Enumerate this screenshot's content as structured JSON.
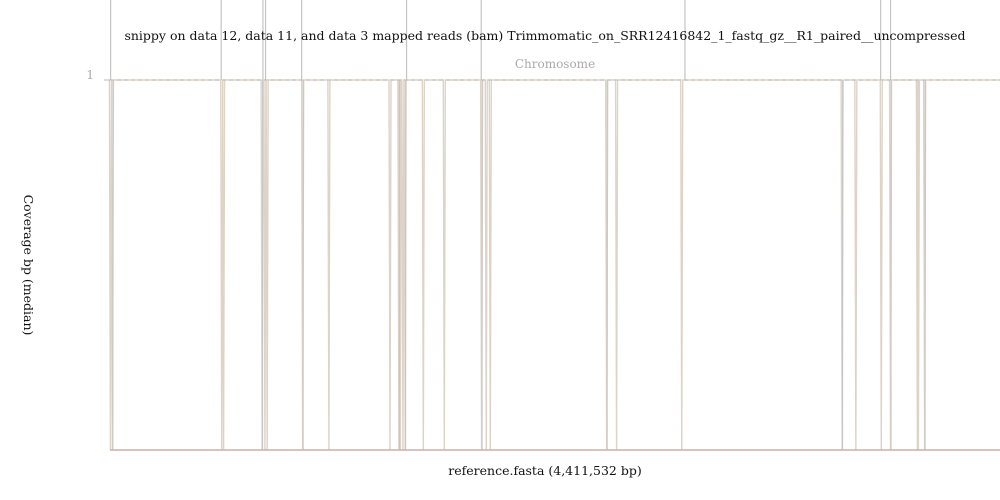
{
  "chart_data": {
    "type": "line",
    "title": "snippy on data 12, data 11, and data 3 mapped reads (bam) Trimmomatic_on_SRR12416842_1_fastq_gz__R1_paired__uncompressed",
    "xlabel": "reference.fasta (4,411,532 bp)",
    "ylabel": "Coverage bp (median)",
    "series_label": "Chromosome",
    "x_range": [
      0,
      4411532
    ],
    "ylim": [
      0,
      1
    ],
    "y_ticks": [
      {
        "value": 1,
        "label": "1"
      }
    ],
    "colors": {
      "line": "#ddd3c7",
      "spike_gray": "#c4c4c4",
      "axis": "#c8b1aa",
      "reference": "#bbbbbb"
    },
    "low_coverage_positions": [
      2000,
      12000,
      554000,
      563000,
      754000,
      768000,
      779000,
      955000,
      1085000,
      1388000,
      1432000,
      1439000,
      1452000,
      1463000,
      1553000,
      1657000,
      1842000,
      1865000,
      1885000,
      2462000,
      2511000,
      2834000,
      3629000,
      3697000,
      3823000,
      3869000,
      4002000,
      4007000,
      4038000
    ],
    "overflow_positions": [
      3000,
      551000,
      758000,
      771000,
      950000,
      1470000,
      1840000,
      2850000,
      3820000,
      3869000
    ]
  }
}
